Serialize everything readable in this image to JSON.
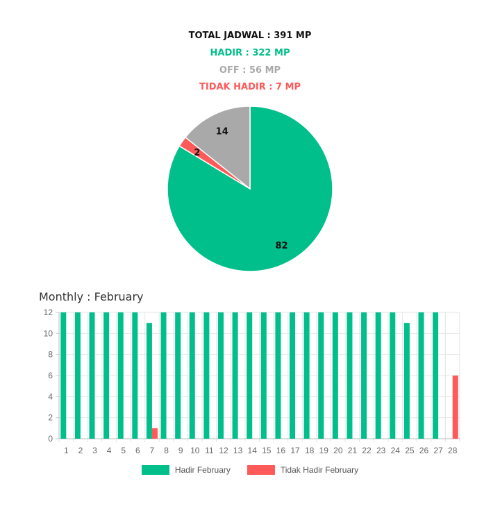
{
  "summary": {
    "total": "TOTAL JADWAL : 391 MP",
    "hadir": "HADIR : 322 MP",
    "off": "OFF : 56 MP",
    "tidak_hadir": "TIDAK HADIR : 7 MP"
  },
  "colors": {
    "hadir": "#00bf8a",
    "off": "#a9a9a9",
    "tidak_hadir": "#ff5a5a",
    "grid": "#e6e6e6"
  },
  "chart_data": [
    {
      "type": "pie",
      "slices": [
        {
          "label": "Hadir",
          "value": 82,
          "color": "#00bf8a"
        },
        {
          "label": "Tidak Hadir",
          "value": 2,
          "color": "#ff5a5a"
        },
        {
          "label": "Off",
          "value": 14,
          "color": "#a9a9a9"
        }
      ]
    },
    {
      "type": "bar",
      "title": "Monthly : February",
      "categories": [
        "1",
        "2",
        "3",
        "4",
        "5",
        "6",
        "7",
        "8",
        "9",
        "10",
        "11",
        "12",
        "13",
        "14",
        "15",
        "16",
        "17",
        "18",
        "19",
        "20",
        "21",
        "22",
        "23",
        "24",
        "25",
        "26",
        "27",
        "28"
      ],
      "series": [
        {
          "name": "Hadir February",
          "color": "#00bf8a",
          "values": [
            12,
            12,
            12,
            12,
            12,
            12,
            11,
            12,
            12,
            12,
            12,
            12,
            12,
            12,
            12,
            12,
            12,
            12,
            12,
            12,
            12,
            12,
            12,
            12,
            11,
            12,
            12,
            0
          ]
        },
        {
          "name": "Tidak Hadir February",
          "color": "#ff5a5a",
          "values": [
            0,
            0,
            0,
            0,
            0,
            0,
            1,
            0,
            0,
            0,
            0,
            0,
            0,
            0,
            0,
            0,
            0,
            0,
            0,
            0,
            0,
            0,
            0,
            0,
            0,
            0,
            0,
            6
          ]
        }
      ],
      "yticks": [
        0,
        2,
        4,
        6,
        8,
        10,
        12
      ],
      "ylim": [
        0,
        12
      ],
      "grid": true,
      "legend": "bottom"
    }
  ]
}
